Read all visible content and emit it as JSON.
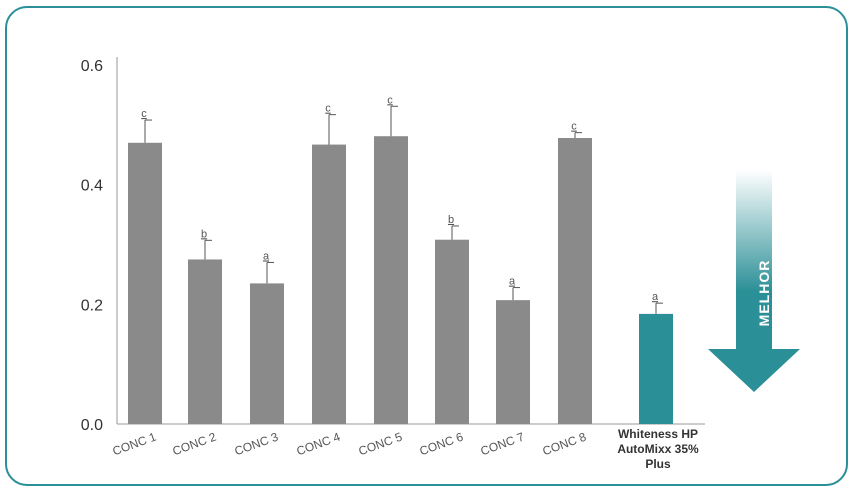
{
  "chart_data": {
    "type": "bar",
    "title": "",
    "xlabel": "",
    "ylabel": "",
    "ylim": [
      0,
      0.6
    ],
    "yticks": [
      "0.0",
      "0.2",
      "0.4",
      "0.6"
    ],
    "grid": false,
    "categories": [
      "CONC 1",
      "CONC 2",
      "CONC 3",
      "CONC 4",
      "CONC 5",
      "CONC 6",
      "CONC 7",
      "CONC 8",
      "Whiteness HP AutoMixx 35% Plus"
    ],
    "category_lines": [
      [
        "CONC 1"
      ],
      [
        "CONC 2"
      ],
      [
        "CONC 3"
      ],
      [
        "CONC 4"
      ],
      [
        "CONC 5"
      ],
      [
        "CONC 6"
      ],
      [
        "CONC 7"
      ],
      [
        "CONC 8"
      ],
      [
        "Whiteness HP",
        "AutoMixx 35%",
        "Plus"
      ]
    ],
    "values": [
      0.47,
      0.275,
      0.235,
      0.467,
      0.481,
      0.308,
      0.207,
      0.478,
      0.184
    ],
    "errors": [
      0.038,
      0.032,
      0.035,
      0.05,
      0.05,
      0.023,
      0.021,
      0.009,
      0.018
    ],
    "significance": [
      "c",
      "b",
      "a",
      "c",
      "c",
      "b",
      "a",
      "c",
      "a"
    ],
    "bar_colors": [
      "#8a8a8a",
      "#8a8a8a",
      "#8a8a8a",
      "#8a8a8a",
      "#8a8a8a",
      "#8a8a8a",
      "#8a8a8a",
      "#8a8a8a",
      "#2a8f96"
    ]
  },
  "arrow": {
    "label": "MELHOR",
    "color": "#2a8f96"
  },
  "colors": {
    "frame": "#2a8f96",
    "axis": "#999999"
  }
}
